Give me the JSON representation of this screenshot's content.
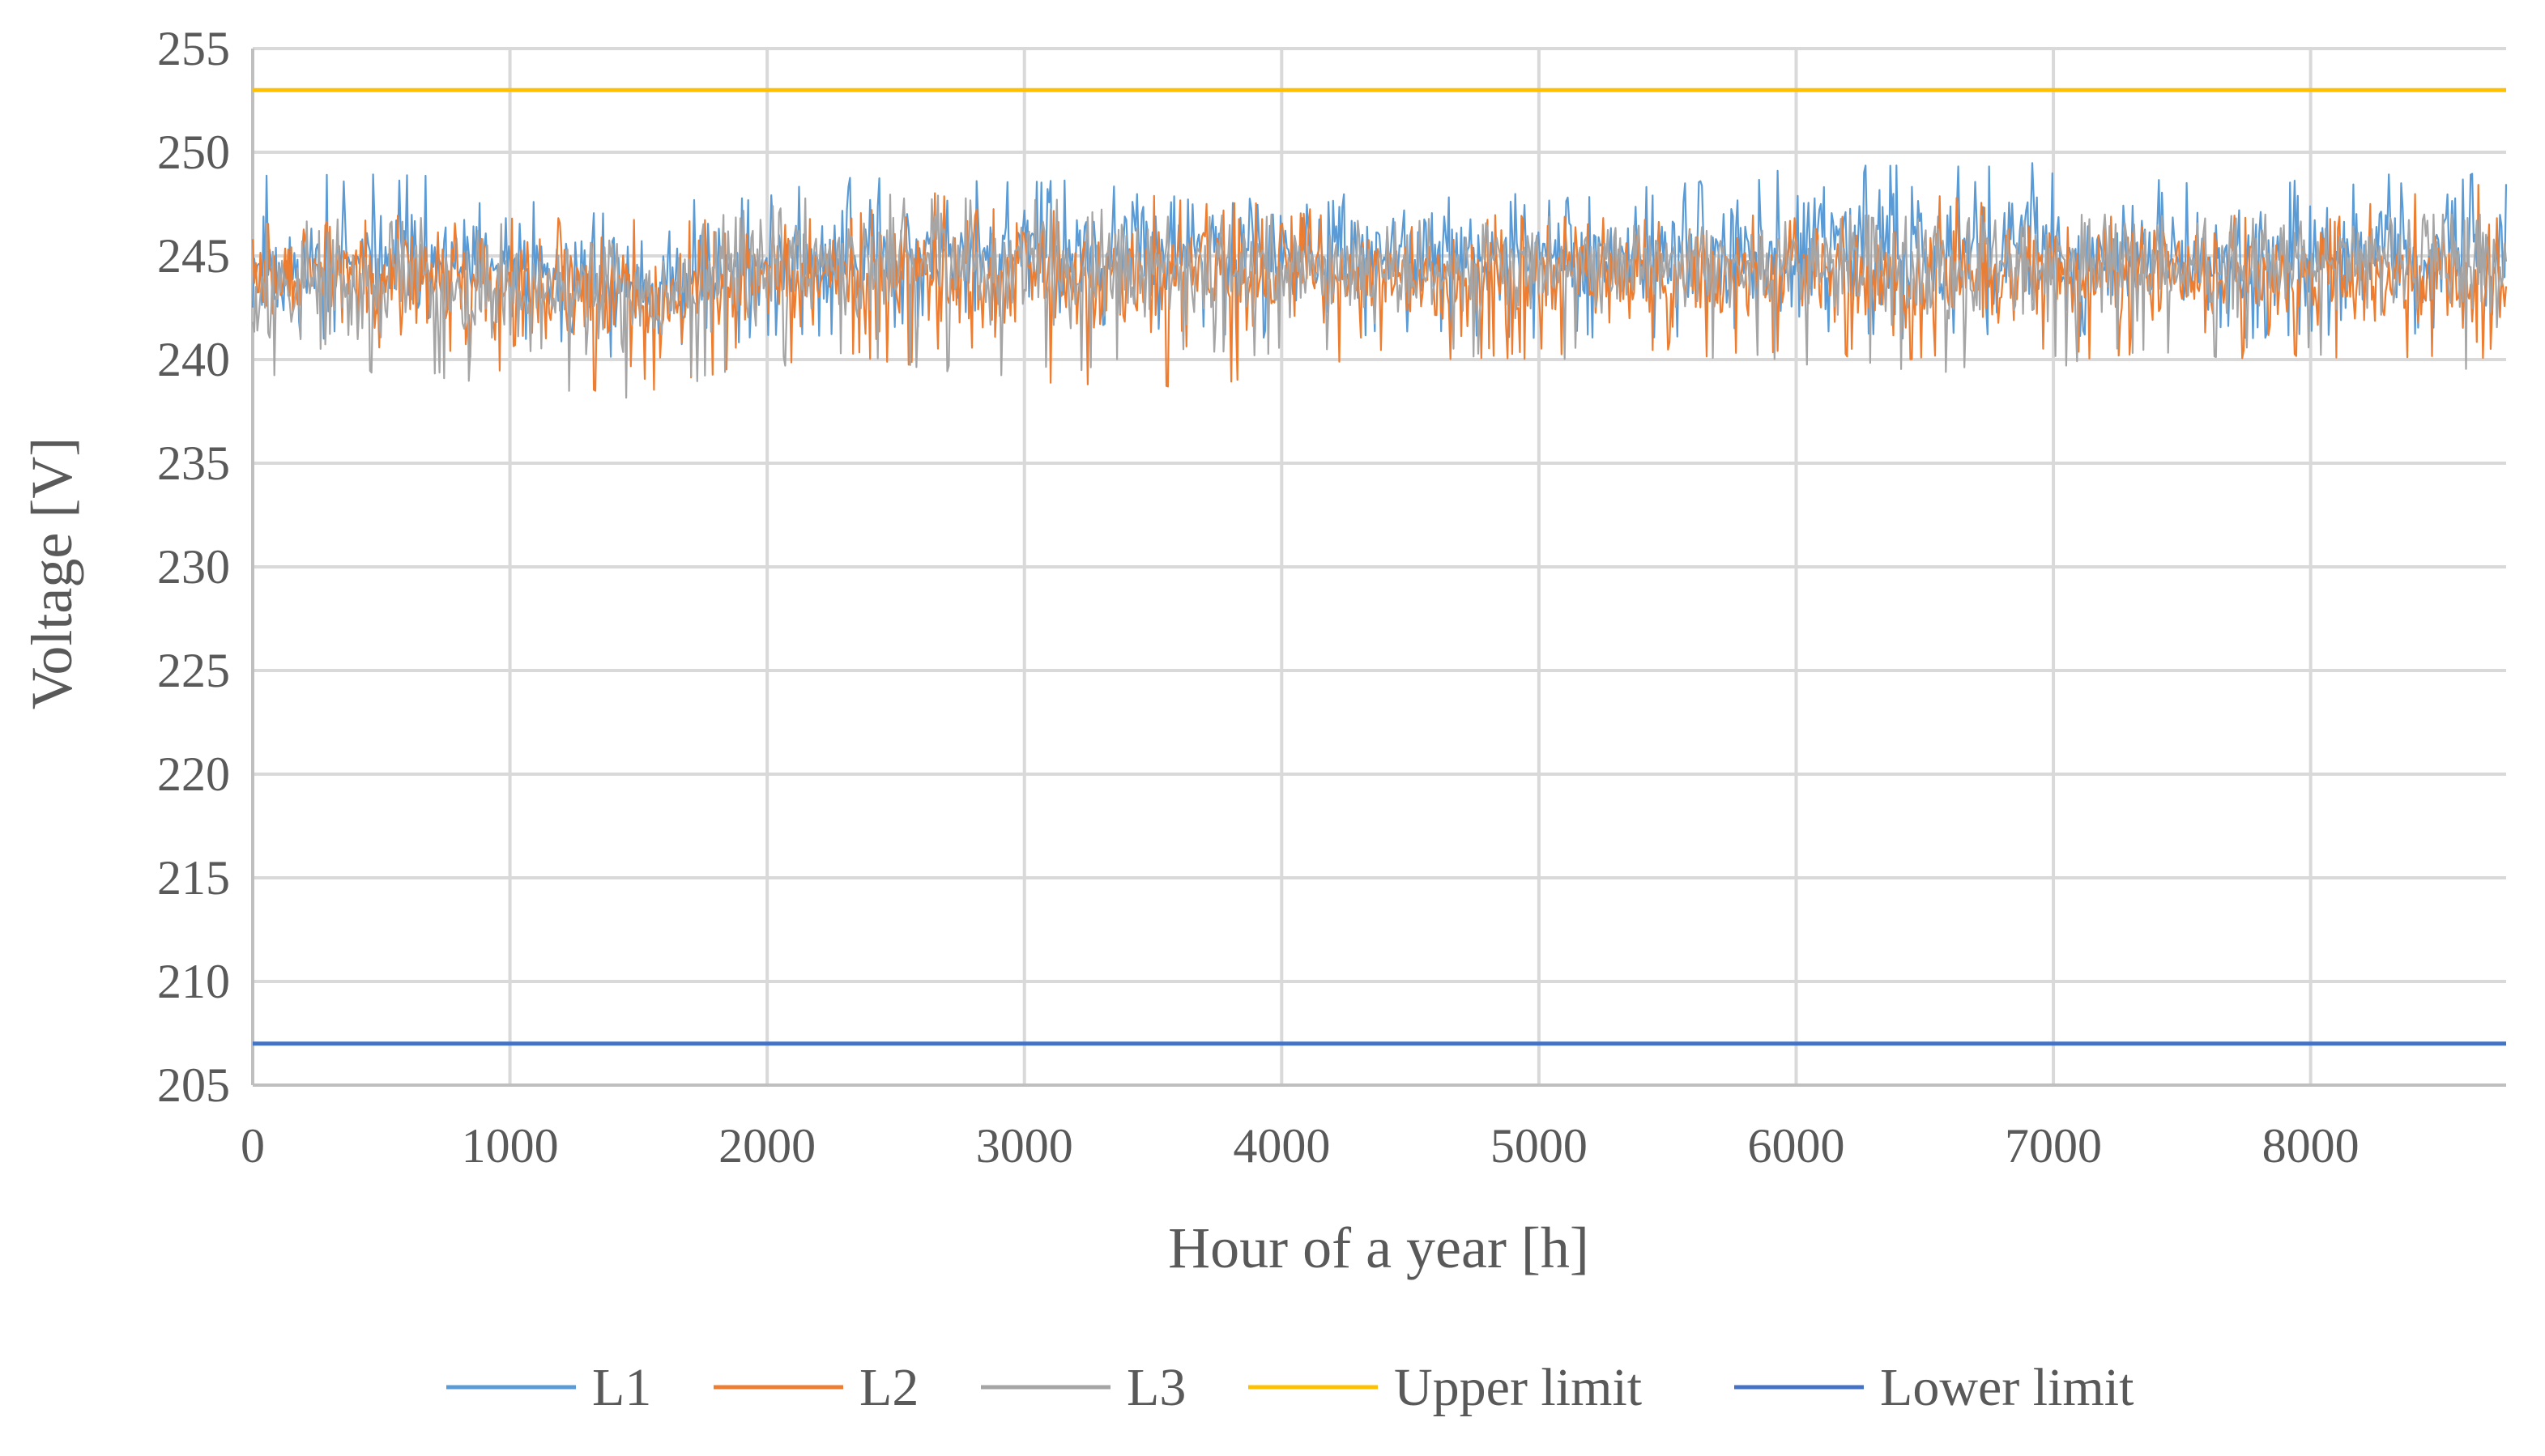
{
  "chart_data": {
    "type": "line",
    "title": "",
    "xlabel": "Hour of a year  [h]",
    "ylabel": "Voltage [V]",
    "xlim": [
      0,
      8760
    ],
    "ylim": [
      205,
      255
    ],
    "x_ticks": [
      0,
      1000,
      2000,
      3000,
      4000,
      5000,
      6000,
      7000,
      8000
    ],
    "y_ticks": [
      205,
      210,
      215,
      220,
      225,
      230,
      235,
      240,
      245,
      250,
      255
    ],
    "grid": true,
    "legend_position": "bottom",
    "x": [
      0,
      730,
      1460,
      2190,
      2920,
      3650,
      4380,
      5110,
      5840,
      6570,
      7300,
      8030,
      8760
    ],
    "series": [
      {
        "name": "L1",
        "color": "#5B9BD5",
        "mean": [
          244.5,
          244.5,
          243.5,
          245,
          245,
          245,
          245,
          245,
          245,
          245.5,
          245,
          245,
          245
        ],
        "max": [
          249,
          249,
          247,
          249,
          249,
          248,
          248,
          248,
          249,
          250,
          249,
          249,
          249
        ],
        "min": [
          241,
          241,
          240,
          241,
          242,
          241,
          241,
          241,
          241,
          241,
          241,
          241,
          241
        ]
      },
      {
        "name": "L2",
        "color": "#ED7D31",
        "mean": [
          244,
          244,
          243,
          244,
          244,
          244,
          244,
          244,
          244,
          244,
          244,
          244,
          244
        ],
        "max": [
          247,
          247,
          247,
          247,
          249,
          248,
          247,
          247,
          247,
          248,
          247,
          247,
          249
        ],
        "min": [
          240,
          240,
          238,
          240,
          239,
          238,
          240,
          240,
          240,
          240,
          240,
          240,
          240
        ]
      },
      {
        "name": "L3",
        "color": "#A5A5A5",
        "mean": [
          243.5,
          243.5,
          243,
          244.5,
          244.5,
          244.5,
          244.5,
          244.5,
          244.5,
          244.5,
          244.5,
          244.5,
          244.5
        ],
        "max": [
          247,
          247,
          246,
          248,
          248,
          247,
          247,
          247,
          247,
          247,
          247,
          247,
          247
        ],
        "min": [
          239,
          239,
          238,
          240,
          239,
          240,
          240,
          240,
          240,
          239,
          240,
          240,
          239
        ]
      },
      {
        "name": "Upper limit",
        "color": "#FFC000",
        "constant": 253
      },
      {
        "name": "Lower limit",
        "color": "#4472C4",
        "constant": 207
      }
    ]
  }
}
